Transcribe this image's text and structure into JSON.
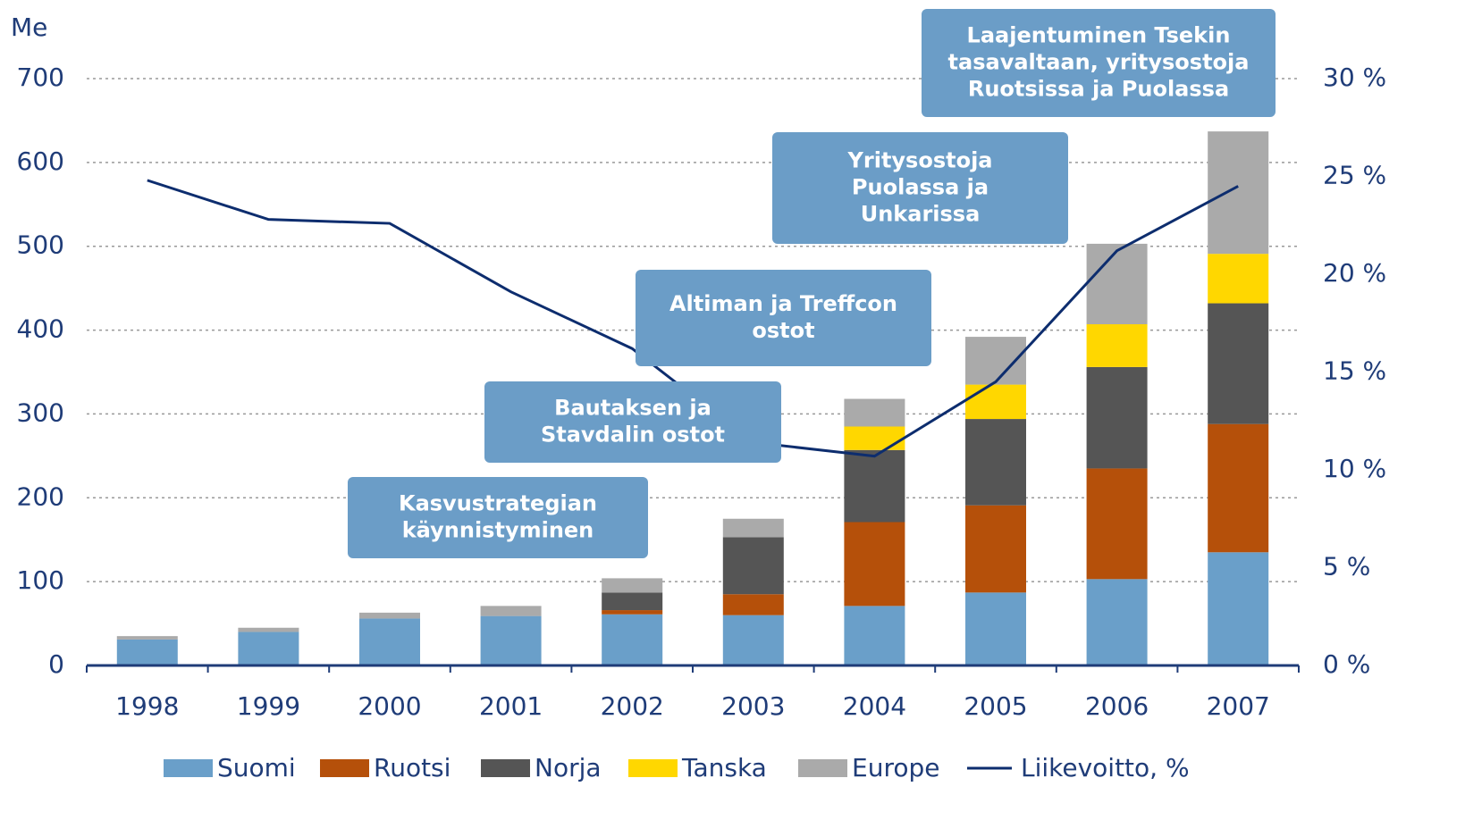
{
  "chart_data": {
    "type": "bar",
    "ylabel": "Me",
    "categories": [
      "1998",
      "1999",
      "2000",
      "2001",
      "2002",
      "2003",
      "2004",
      "2005",
      "2006",
      "2007"
    ],
    "ylim": [
      0,
      700
    ],
    "yticks": [
      0,
      100,
      200,
      300,
      400,
      500,
      600,
      700
    ],
    "y2lim": [
      0,
      30
    ],
    "y2ticks": [
      {
        "value": 0,
        "label": "0 %"
      },
      {
        "value": 5,
        "label": "5 %"
      },
      {
        "value": 10,
        "label": "10 %"
      },
      {
        "value": 15,
        "label": "15 %"
      },
      {
        "value": 20,
        "label": "20 %"
      },
      {
        "value": 25,
        "label": "25 %"
      },
      {
        "value": 30,
        "label": "30 %"
      }
    ],
    "grid": true,
    "series": [
      {
        "name": "Suomi",
        "color": "#6a9fc9",
        "values": [
          31,
          40,
          56,
          59,
          61,
          60,
          71,
          87,
          103,
          135
        ]
      },
      {
        "name": "Ruotsi",
        "color": "#b5500a",
        "values": [
          0,
          0,
          0,
          0,
          5,
          25,
          100,
          104,
          132,
          153
        ]
      },
      {
        "name": "Norja",
        "color": "#555555",
        "values": [
          0,
          0,
          0,
          0,
          21,
          68,
          86,
          103,
          121,
          144
        ]
      },
      {
        "name": "Tanska",
        "color": "#ffd700",
        "values": [
          0,
          0,
          0,
          0,
          0,
          0,
          28,
          41,
          51,
          59
        ]
      },
      {
        "name": "Europe",
        "color": "#aaaaaa",
        "values": [
          4,
          5,
          7,
          12,
          17,
          22,
          33,
          57,
          96,
          146
        ]
      },
      {
        "name": "Liikevoitto, %",
        "color": "#0d2d6e",
        "type": "line",
        "axis": "y2",
        "values": [
          24.8,
          22.8,
          22.6,
          19.1,
          16.2,
          11.4,
          10.7,
          14.5,
          21.2,
          24.5
        ]
      }
    ],
    "annotations": [
      {
        "lines": [
          "Kasvustrategian",
          "käynnistyminen"
        ]
      },
      {
        "lines": [
          "Bautaksen ja",
          "Stavdalin ostot"
        ]
      },
      {
        "lines": [
          "Altiman ja Treffcon",
          "ostot"
        ]
      },
      {
        "lines": [
          "Yritysostoja",
          "Puolassa ja",
          "Unkarissa"
        ]
      },
      {
        "lines": [
          "Laajentuminen Tsekin",
          "tasavaltaan, yritysostoja",
          "Ruotsissa ja Puolassa"
        ]
      }
    ]
  }
}
